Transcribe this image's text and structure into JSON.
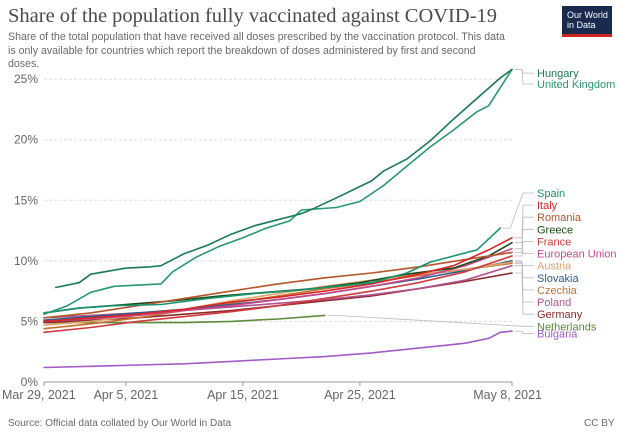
{
  "header": {
    "title": "Share of the population fully vaccinated against COVID-19",
    "subtitle": "Share of the total population that have received all doses prescribed by the vaccination protocol. This data is only available for countries which report the breakdown of doses administered by first and second doses.",
    "logo_line1": "Our World",
    "logo_line2": "in Data"
  },
  "footer": {
    "source": "Source: Official data collated by Our World in Data",
    "license": "CC BY"
  },
  "chart_data": {
    "type": "line",
    "title": "Share of the population fully vaccinated against COVID-19",
    "xlabel": "",
    "ylabel": "",
    "x_range": [
      "2021-03-29",
      "2021-05-08"
    ],
    "x_ticks": [
      {
        "date": "2021-03-29",
        "label": "Mar 29, 2021"
      },
      {
        "date": "2021-04-05",
        "label": "Apr 5, 2021"
      },
      {
        "date": "2021-04-15",
        "label": "Apr 15, 2021"
      },
      {
        "date": "2021-04-25",
        "label": "Apr 25, 2021"
      },
      {
        "date": "2021-05-08",
        "label": "May 8, 2021"
      }
    ],
    "ylim": [
      0,
      26
    ],
    "y_ticks": [
      0,
      5,
      10,
      15,
      20,
      25
    ],
    "y_tick_suffix": "%",
    "grid": "horizontal dashed",
    "legend": "right-side labels",
    "series": [
      {
        "name": "Hungary",
        "color": "#1a7a55",
        "label_y": 25.5,
        "points": [
          [
            "2021-03-30",
            7.8
          ],
          [
            "2021-04-01",
            8.2
          ],
          [
            "2021-04-02",
            8.9
          ],
          [
            "2021-04-05",
            9.4
          ],
          [
            "2021-04-07",
            9.5
          ],
          [
            "2021-04-08",
            9.6
          ],
          [
            "2021-04-10",
            10.6
          ],
          [
            "2021-04-12",
            11.3
          ],
          [
            "2021-04-14",
            12.2
          ],
          [
            "2021-04-16",
            12.9
          ],
          [
            "2021-04-18",
            13.4
          ],
          [
            "2021-04-20",
            13.9
          ],
          [
            "2021-04-21",
            14.3
          ],
          [
            "2021-04-23",
            15.2
          ],
          [
            "2021-04-26",
            16.6
          ],
          [
            "2021-04-27",
            17.4
          ],
          [
            "2021-04-29",
            18.4
          ],
          [
            "2021-05-01",
            19.9
          ],
          [
            "2021-05-03",
            21.7
          ],
          [
            "2021-05-05",
            23.4
          ],
          [
            "2021-05-07",
            25.1
          ],
          [
            "2021-05-08",
            25.8
          ]
        ]
      },
      {
        "name": "United Kingdom",
        "color": "#28986d",
        "label_y": 24.6,
        "points": [
          [
            "2021-03-29",
            5.6
          ],
          [
            "2021-03-31",
            6.3
          ],
          [
            "2021-04-02",
            7.4
          ],
          [
            "2021-04-04",
            7.9
          ],
          [
            "2021-04-06",
            8.0
          ],
          [
            "2021-04-08",
            8.1
          ],
          [
            "2021-04-09",
            9.1
          ],
          [
            "2021-04-11",
            10.3
          ],
          [
            "2021-04-13",
            11.2
          ],
          [
            "2021-04-15",
            11.9
          ],
          [
            "2021-04-17",
            12.7
          ],
          [
            "2021-04-19",
            13.3
          ],
          [
            "2021-04-20",
            14.2
          ],
          [
            "2021-04-23",
            14.4
          ],
          [
            "2021-04-25",
            14.9
          ],
          [
            "2021-04-27",
            16.2
          ],
          [
            "2021-04-29",
            17.8
          ],
          [
            "2021-05-01",
            19.4
          ],
          [
            "2021-05-03",
            20.8
          ],
          [
            "2021-05-05",
            22.3
          ],
          [
            "2021-05-06",
            22.8
          ],
          [
            "2021-05-08",
            25.8
          ]
        ]
      },
      {
        "name": "Spain",
        "color": "#18946e",
        "label_y": 15.6,
        "points": [
          [
            "2021-03-29",
            5.7
          ],
          [
            "2021-04-01",
            6.1
          ],
          [
            "2021-04-04",
            6.3
          ],
          [
            "2021-04-08",
            6.4
          ],
          [
            "2021-04-12",
            6.9
          ],
          [
            "2021-04-16",
            7.3
          ],
          [
            "2021-04-20",
            7.6
          ],
          [
            "2021-04-23",
            7.9
          ],
          [
            "2021-04-26",
            8.2
          ],
          [
            "2021-04-29",
            9.0
          ],
          [
            "2021-05-01",
            9.9
          ],
          [
            "2021-05-03",
            10.4
          ],
          [
            "2021-05-05",
            10.9
          ],
          [
            "2021-05-07",
            12.7
          ]
        ]
      },
      {
        "name": "Italy",
        "color": "#d62728",
        "label_y": 14.6,
        "points": [
          [
            "2021-03-29",
            5.0
          ],
          [
            "2021-04-02",
            5.3
          ],
          [
            "2021-04-06",
            5.6
          ],
          [
            "2021-04-10",
            6.0
          ],
          [
            "2021-04-14",
            6.6
          ],
          [
            "2021-04-18",
            7.0
          ],
          [
            "2021-04-22",
            7.5
          ],
          [
            "2021-04-26",
            8.1
          ],
          [
            "2021-04-30",
            8.9
          ],
          [
            "2021-05-03",
            9.6
          ],
          [
            "2021-05-06",
            10.9
          ],
          [
            "2021-05-08",
            11.9
          ]
        ]
      },
      {
        "name": "Romania",
        "color": "#b5562b",
        "label_y": 13.6,
        "points": [
          [
            "2021-03-29",
            5.3
          ],
          [
            "2021-04-02",
            5.7
          ],
          [
            "2021-04-06",
            6.3
          ],
          [
            "2021-04-10",
            6.9
          ],
          [
            "2021-04-14",
            7.5
          ],
          [
            "2021-04-18",
            8.1
          ],
          [
            "2021-04-22",
            8.6
          ],
          [
            "2021-04-26",
            9.0
          ],
          [
            "2021-04-30",
            9.5
          ],
          [
            "2021-05-04",
            10.1
          ],
          [
            "2021-05-08",
            10.7
          ]
        ]
      },
      {
        "name": "Greece",
        "color": "#1a4d1a",
        "label_y": 12.6,
        "points": [
          [
            "2021-03-29",
            5.7
          ],
          [
            "2021-04-01",
            6.1
          ],
          [
            "2021-04-05",
            6.4
          ],
          [
            "2021-04-09",
            6.7
          ],
          [
            "2021-04-13",
            7.1
          ],
          [
            "2021-04-17",
            7.4
          ],
          [
            "2021-04-21",
            7.7
          ],
          [
            "2021-04-25",
            8.2
          ],
          [
            "2021-04-29",
            8.9
          ],
          [
            "2021-05-03",
            9.4
          ],
          [
            "2021-05-06",
            10.4
          ],
          [
            "2021-05-08",
            11.5
          ]
        ]
      },
      {
        "name": "France",
        "color": "#d03b40",
        "label_y": 11.6,
        "points": [
          [
            "2021-03-29",
            4.1
          ],
          [
            "2021-04-02",
            4.5
          ],
          [
            "2021-04-06",
            5.0
          ],
          [
            "2021-04-10",
            5.4
          ],
          [
            "2021-04-14",
            5.8
          ],
          [
            "2021-04-18",
            6.3
          ],
          [
            "2021-04-22",
            6.9
          ],
          [
            "2021-04-26",
            7.5
          ],
          [
            "2021-04-30",
            8.2
          ],
          [
            "2021-05-04",
            9.1
          ],
          [
            "2021-05-08",
            10.4
          ]
        ]
      },
      {
        "name": "European Union",
        "color": "#c9468a",
        "label_y": 10.6,
        "points": [
          [
            "2021-03-29",
            5.0
          ],
          [
            "2021-04-02",
            5.2
          ],
          [
            "2021-04-06",
            5.5
          ],
          [
            "2021-04-10",
            5.9
          ],
          [
            "2021-04-14",
            6.3
          ],
          [
            "2021-04-18",
            6.8
          ],
          [
            "2021-04-22",
            7.3
          ],
          [
            "2021-04-26",
            7.9
          ],
          [
            "2021-04-30",
            8.6
          ],
          [
            "2021-05-04",
            9.6
          ],
          [
            "2021-05-08",
            11.0
          ]
        ]
      },
      {
        "name": "Austria",
        "color": "#e0a36a",
        "label_y": 9.6,
        "points": [
          [
            "2021-03-29",
            4.7
          ],
          [
            "2021-04-02",
            5.0
          ],
          [
            "2021-04-06",
            5.5
          ],
          [
            "2021-04-10",
            6.0
          ],
          [
            "2021-04-14",
            6.7
          ],
          [
            "2021-04-18",
            7.3
          ],
          [
            "2021-04-22",
            7.9
          ],
          [
            "2021-04-26",
            8.4
          ],
          [
            "2021-04-30",
            8.9
          ],
          [
            "2021-05-04",
            9.3
          ],
          [
            "2021-05-08",
            9.9
          ]
        ]
      },
      {
        "name": "Slovakia",
        "color": "#2a5f8f",
        "label_y": 8.6,
        "points": [
          [
            "2021-03-29",
            5.1
          ],
          [
            "2021-04-02",
            5.4
          ],
          [
            "2021-04-06",
            5.7
          ],
          [
            "2021-04-10",
            6.0
          ],
          [
            "2021-04-14",
            6.4
          ],
          [
            "2021-04-18",
            6.8
          ],
          [
            "2021-04-22",
            7.3
          ],
          [
            "2021-04-26",
            7.9
          ],
          [
            "2021-04-30",
            8.5
          ],
          [
            "2021-05-04",
            9.2
          ],
          [
            "2021-05-08",
            10.0
          ]
        ]
      },
      {
        "name": "Czechia",
        "color": "#c7702f",
        "label_y": 7.6,
        "points": [
          [
            "2021-03-29",
            4.4
          ],
          [
            "2021-04-02",
            4.8
          ],
          [
            "2021-04-06",
            5.3
          ],
          [
            "2021-04-10",
            5.9
          ],
          [
            "2021-04-14",
            6.5
          ],
          [
            "2021-04-18",
            7.1
          ],
          [
            "2021-04-22",
            7.7
          ],
          [
            "2021-04-26",
            8.2
          ],
          [
            "2021-04-30",
            8.8
          ],
          [
            "2021-05-04",
            9.3
          ],
          [
            "2021-05-08",
            9.8
          ]
        ]
      },
      {
        "name": "Poland",
        "color": "#b4538f",
        "label_y": 6.6,
        "points": [
          [
            "2021-03-29",
            5.3
          ],
          [
            "2021-04-02",
            5.5
          ],
          [
            "2021-04-06",
            5.7
          ],
          [
            "2021-04-10",
            5.9
          ],
          [
            "2021-04-14",
            6.2
          ],
          [
            "2021-04-18",
            6.5
          ],
          [
            "2021-04-22",
            6.8
          ],
          [
            "2021-04-26",
            7.2
          ],
          [
            "2021-04-30",
            7.7
          ],
          [
            "2021-05-04",
            8.4
          ],
          [
            "2021-05-08",
            9.6
          ]
        ]
      },
      {
        "name": "Germany",
        "color": "#8c2a2a",
        "label_y": 5.6,
        "points": [
          [
            "2021-03-29",
            4.9
          ],
          [
            "2021-04-02",
            5.1
          ],
          [
            "2021-04-06",
            5.3
          ],
          [
            "2021-04-10",
            5.6
          ],
          [
            "2021-04-14",
            5.9
          ],
          [
            "2021-04-18",
            6.3
          ],
          [
            "2021-04-22",
            6.7
          ],
          [
            "2021-04-26",
            7.1
          ],
          [
            "2021-04-30",
            7.7
          ],
          [
            "2021-05-04",
            8.3
          ],
          [
            "2021-05-08",
            9.0
          ]
        ]
      },
      {
        "name": "Netherlands",
        "color": "#5e8a3c",
        "label_y": 4.6,
        "points": [
          [
            "2021-03-29",
            4.9
          ],
          [
            "2021-04-02",
            4.9
          ],
          [
            "2021-04-06",
            4.9
          ],
          [
            "2021-04-10",
            4.9
          ],
          [
            "2021-04-14",
            5.0
          ],
          [
            "2021-04-18",
            5.2
          ],
          [
            "2021-04-22",
            5.5
          ]
        ]
      },
      {
        "name": "Bulgaria",
        "color": "#a35bc7",
        "label_y": 4.0,
        "points": [
          [
            "2021-03-29",
            1.2
          ],
          [
            "2021-04-02",
            1.3
          ],
          [
            "2021-04-06",
            1.4
          ],
          [
            "2021-04-10",
            1.5
          ],
          [
            "2021-04-14",
            1.7
          ],
          [
            "2021-04-18",
            1.9
          ],
          [
            "2021-04-22",
            2.1
          ],
          [
            "2021-04-26",
            2.4
          ],
          [
            "2021-04-30",
            2.8
          ],
          [
            "2021-05-02",
            3.0
          ],
          [
            "2021-05-04",
            3.2
          ],
          [
            "2021-05-06",
            3.6
          ],
          [
            "2021-05-07",
            4.1
          ],
          [
            "2021-05-08",
            4.2
          ]
        ]
      }
    ]
  }
}
